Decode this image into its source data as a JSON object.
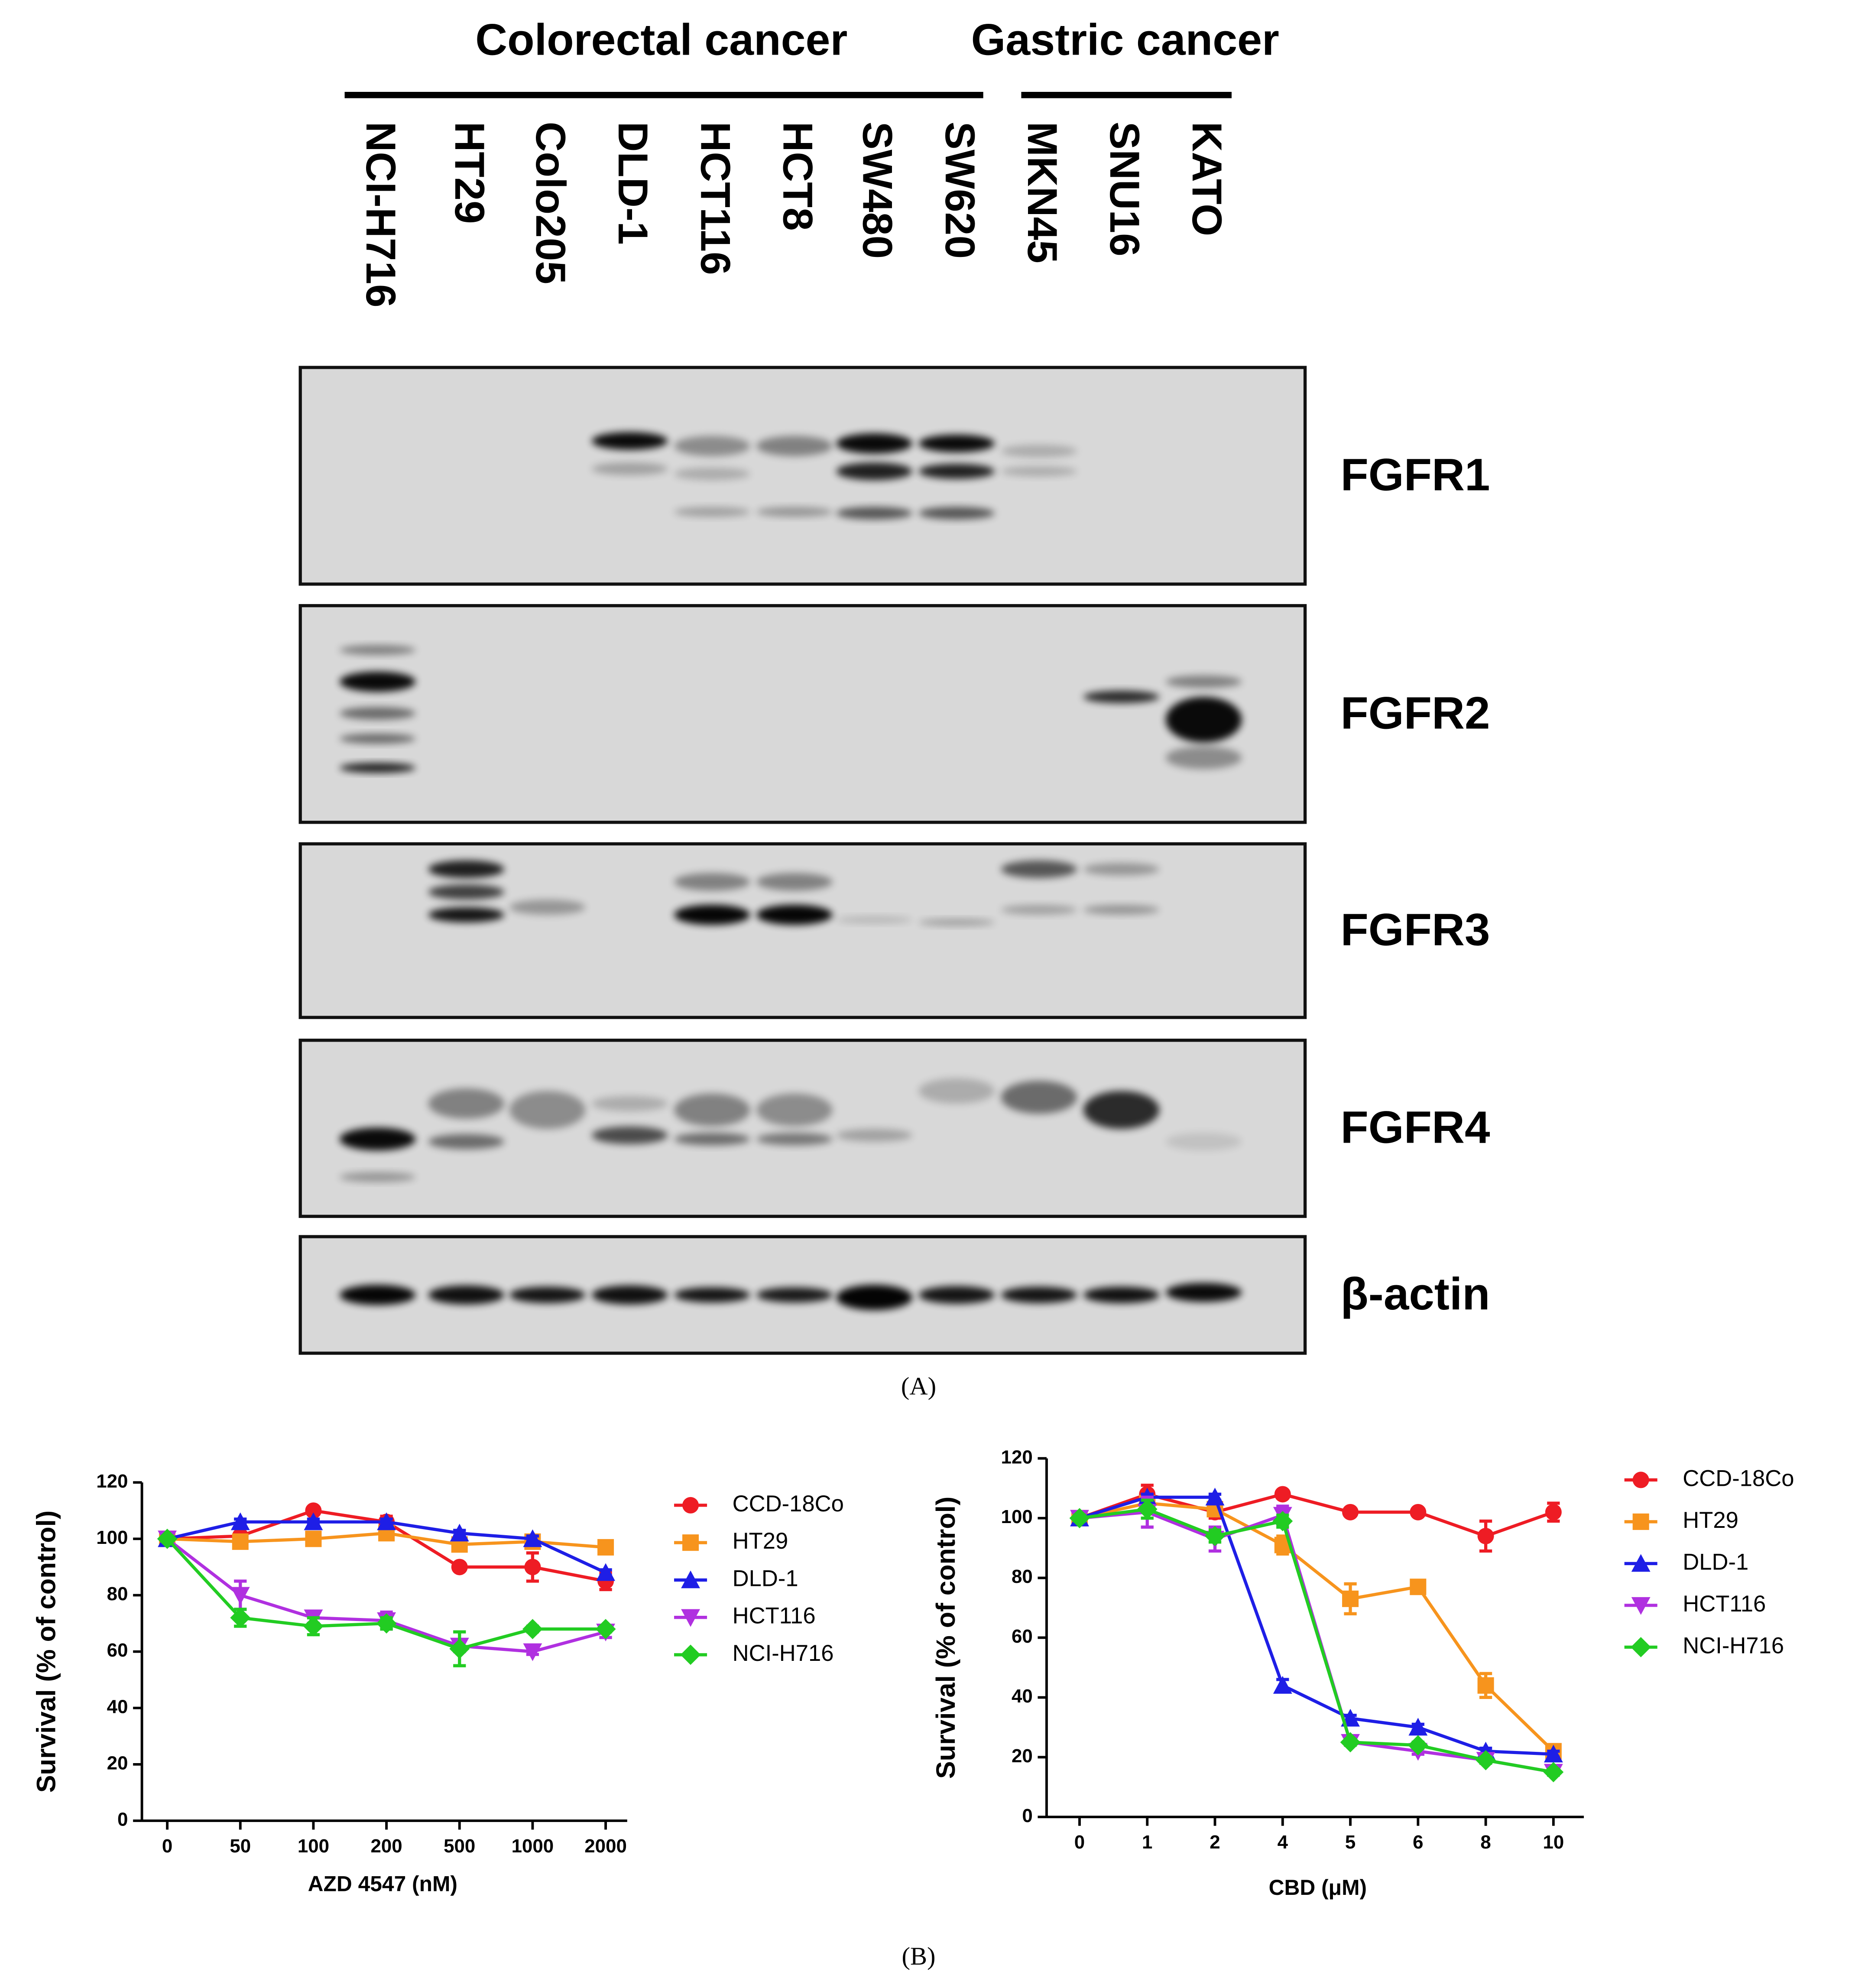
{
  "panels": [
    "(A)",
    "(B)"
  ],
  "blot": {
    "groups": [
      {
        "label": "Colorectal cancer"
      },
      {
        "label": "Gastric cancer"
      }
    ],
    "lanes": [
      "NCI-H716",
      "HT29",
      "Colo205",
      "DLD-1",
      "HCT116",
      "HCT8",
      "SW480",
      "SW620",
      "MKN45",
      "SNU16",
      "KATO"
    ],
    "rows": [
      "FGFR1",
      "FGFR2",
      "FGFR3",
      "FGFR4",
      "β-actin"
    ]
  },
  "chart_data": [
    {
      "type": "line",
      "xlabel": "AZD 4547 (nM)",
      "ylabel": "Survival (% of control)",
      "categories": [
        "0",
        "50",
        "100",
        "200",
        "500",
        "1000",
        "2000"
      ],
      "ylim": [
        0,
        120
      ],
      "yticks": [
        0,
        20,
        40,
        60,
        80,
        100,
        120
      ],
      "legend": "right",
      "series": [
        {
          "name": "CCD-18Co",
          "color": "#ee1c24",
          "marker": "circle",
          "values": [
            100,
            101,
            110,
            106,
            90,
            90,
            85
          ],
          "errors": [
            1,
            1,
            1,
            2,
            1,
            5,
            3
          ]
        },
        {
          "name": "HT29",
          "color": "#f7941d",
          "marker": "square",
          "values": [
            100,
            99,
            100,
            102,
            98,
            99,
            97
          ],
          "errors": [
            1,
            1,
            1,
            1,
            1,
            2,
            1
          ]
        },
        {
          "name": "DLD-1",
          "color": "#1e1ee6",
          "marker": "triangle",
          "values": [
            100,
            106,
            106,
            106,
            102,
            100,
            88
          ],
          "errors": [
            1,
            1,
            1,
            1,
            1,
            1,
            1
          ]
        },
        {
          "name": "HCT116",
          "color": "#b030e0",
          "marker": "triangle-down",
          "values": [
            100,
            80,
            72,
            71,
            62,
            60,
            67
          ],
          "errors": [
            1,
            5,
            2,
            3,
            2,
            1,
            2
          ]
        },
        {
          "name": "NCI-H716",
          "color": "#22cc22",
          "marker": "diamond",
          "values": [
            100,
            72,
            69,
            70,
            61,
            68,
            68
          ],
          "errors": [
            1,
            3,
            3,
            2,
            6,
            1,
            1
          ]
        }
      ]
    },
    {
      "type": "line",
      "xlabel": "CBD (μM)",
      "ylabel": "Survival (% of control)",
      "categories": [
        "0",
        "1",
        "2",
        "4",
        "5",
        "6",
        "8",
        "10"
      ],
      "ylim": [
        0,
        120
      ],
      "yticks": [
        0,
        20,
        40,
        60,
        80,
        100,
        120
      ],
      "legend": "right",
      "series": [
        {
          "name": "CCD-18Co",
          "color": "#ee1c24",
          "marker": "circle",
          "values": [
            100,
            108,
            102,
            108,
            102,
            102,
            94,
            102
          ],
          "errors": [
            2,
            3,
            2,
            1,
            1,
            1,
            5,
            3
          ]
        },
        {
          "name": "HT29",
          "color": "#f7941d",
          "marker": "square",
          "values": [
            100,
            105,
            103,
            91,
            73,
            77,
            44,
            22
          ],
          "errors": [
            1,
            2,
            1,
            3,
            5,
            1,
            4,
            2
          ]
        },
        {
          "name": "DLD-1",
          "color": "#1e1ee6",
          "marker": "triangle",
          "values": [
            100,
            107,
            107,
            44,
            33,
            30,
            22,
            21
          ],
          "errors": [
            1,
            1,
            1,
            2,
            1,
            1,
            1,
            1
          ]
        },
        {
          "name": "HCT116",
          "color": "#b030e0",
          "marker": "triangle-down",
          "values": [
            100,
            102,
            93,
            101,
            25,
            22,
            19,
            15
          ],
          "errors": [
            1,
            5,
            4,
            3,
            1,
            1,
            1,
            1
          ]
        },
        {
          "name": "NCI-H716",
          "color": "#22cc22",
          "marker": "diamond",
          "values": [
            100,
            103,
            94,
            99,
            25,
            24,
            19,
            15
          ],
          "errors": [
            1,
            3,
            2,
            2,
            1,
            1,
            1,
            1
          ]
        }
      ]
    }
  ]
}
